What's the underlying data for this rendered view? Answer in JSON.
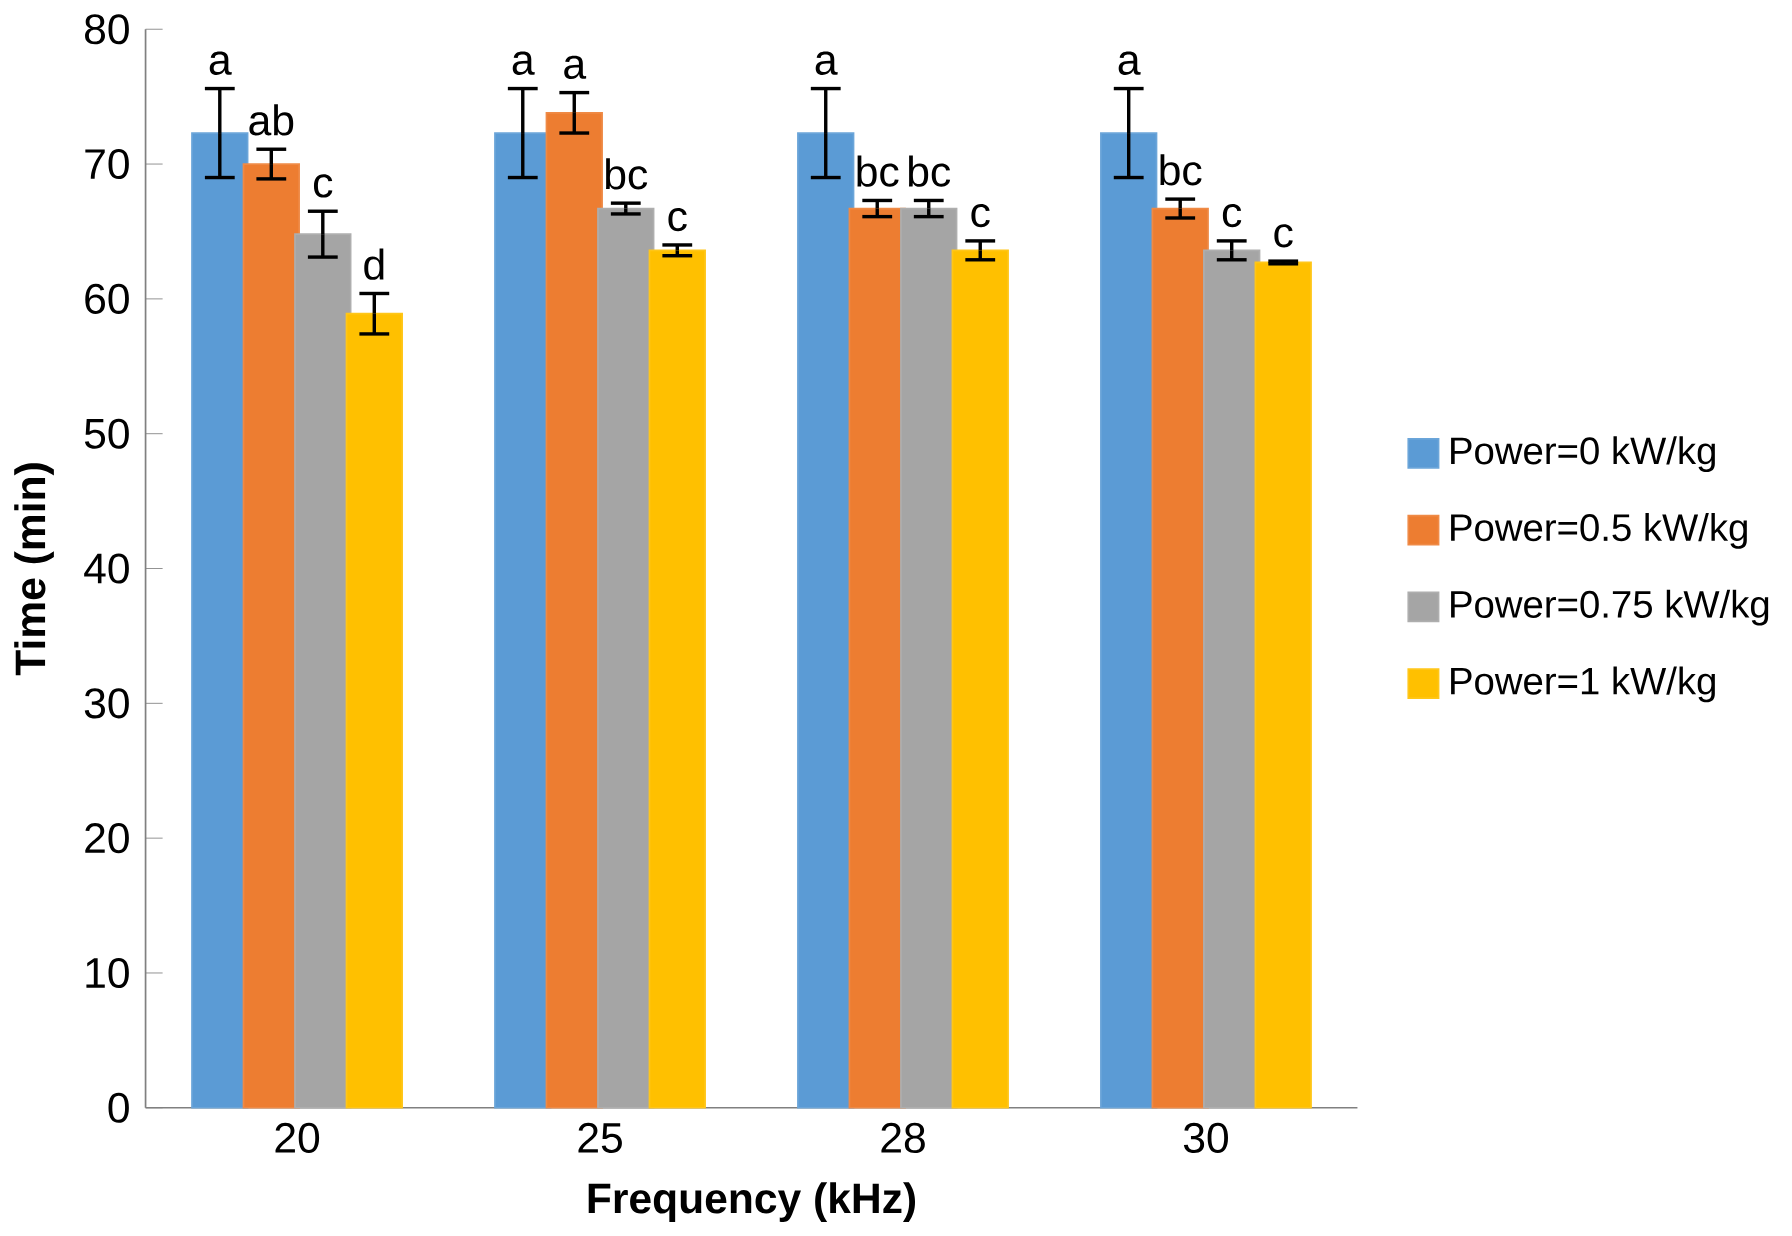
{
  "chart_data": {
    "type": "bar",
    "xlabel": "Frequency (kHz)",
    "ylabel": "Time (min)",
    "categories": [
      "20",
      "25",
      "28",
      "30"
    ],
    "ylim": [
      0,
      80
    ],
    "yticks": [
      0,
      10,
      20,
      30,
      40,
      50,
      60,
      70,
      80
    ],
    "legend": "right",
    "grid": false,
    "series": [
      {
        "name": "Power=0 kW/kg",
        "color": "#5b9bd5",
        "values": [
          72.3,
          72.3,
          72.3,
          72.3
        ],
        "errors": [
          3.3,
          3.3,
          3.3,
          3.3
        ],
        "value_labels": [
          "a",
          "a",
          "a",
          "a"
        ]
      },
      {
        "name": "Power=0.5 kW/kg",
        "color": "#ed7d31",
        "values": [
          70,
          73.8,
          66.7,
          66.7
        ],
        "errors": [
          1.1,
          1.5,
          0.6,
          0.7
        ],
        "value_labels": [
          "ab",
          "a",
          "bc",
          "bc"
        ]
      },
      {
        "name": "Power=0.75 kW/kg",
        "color": "#a5a5a5",
        "values": [
          64.8,
          66.7,
          66.7,
          63.6
        ],
        "errors": [
          1.7,
          0.4,
          0.6,
          0.7
        ],
        "value_labels": [
          "c",
          "bc",
          "bc",
          "c"
        ]
      },
      {
        "name": "Power=1 kW/kg",
        "color": "#ffc000",
        "values": [
          58.9,
          63.6,
          63.6,
          62.7
        ],
        "errors": [
          1.5,
          0.4,
          0.7,
          0.1
        ],
        "value_labels": [
          "d",
          "c",
          "c",
          "c"
        ]
      }
    ]
  }
}
